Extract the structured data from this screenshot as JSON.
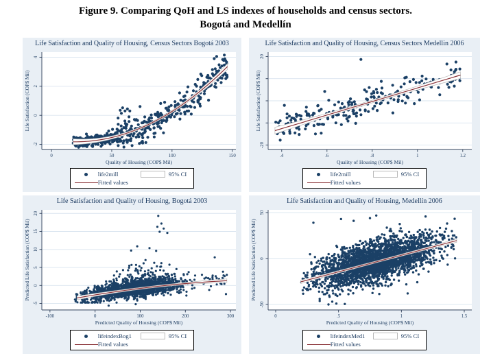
{
  "figure": {
    "title_line1": "Figure 9. Comparing QoH and LS indexes of households and census sectors.",
    "title_line2": "Bogotá and Medellín"
  },
  "colors": {
    "marker": "#1b4066",
    "fit": "#8b3439",
    "band_edge": "#b9b9b9",
    "band_fill": "#ffffff",
    "grid": "#d9e4ef",
    "axis": "#30405a",
    "text": "#1b3a5f",
    "panel_bg": "#e9eff5",
    "plot_bg": "#ffffff"
  },
  "chart_data": [
    {
      "type": "scatter",
      "title": "Life Satisfaction and Quality of Housing, Census Sectors Bogotá 2003",
      "xlabel": "Quality of Housing (COP$ Mil)",
      "ylabel": "Life Satisfaction (COP$ Mil)",
      "xlim": [
        -8,
        153
      ],
      "ylim": [
        -2.35,
        4.35
      ],
      "xtick_values": [
        0,
        50,
        100,
        150
      ],
      "xtick_labels": [
        "0",
        "50",
        "100",
        "150"
      ],
      "ytick_values": [
        -2,
        0,
        2,
        4
      ],
      "ytick_labels": [
        "-2",
        "0",
        "2",
        "4"
      ],
      "legend": {
        "marker_label": "life2mill",
        "ci_label": "95% CI",
        "fit_label": "Fitted values"
      },
      "scatter": {
        "n": 600,
        "seed": 11,
        "parts": [
          {
            "p": 0.45,
            "dist": "uniform",
            "min": 18,
            "max": 55
          },
          {
            "p": 0.38,
            "dist": "uniform",
            "min": 55,
            "max": 112
          },
          {
            "p": 0.17,
            "dist": "uniform",
            "min": 112,
            "max": 146
          }
        ],
        "trend": {
          "type": "shiftquad",
          "c0": -1.82,
          "x0": 20,
          "k": 0.000326
        },
        "noise": [
          {
            "xmax": 55,
            "sd": 0.16
          },
          {
            "xmax": 112,
            "sd": 0.5
          },
          {
            "xmax": 999,
            "sd": 0.5
          }
        ],
        "yclip": [
          -2.2,
          4.2
        ],
        "extra": [
          [
            57,
            0.35
          ],
          [
            59,
            0.52
          ],
          [
            61,
            0.3
          ],
          [
            63,
            0.44
          ],
          [
            58,
            0.14
          ],
          [
            65,
            0.3
          ],
          [
            137,
            4.05
          ],
          [
            135,
            3.9
          ],
          [
            20,
            -1.75
          ],
          [
            23,
            -2.0
          ]
        ],
        "radius": 2.1
      },
      "fit": {
        "x0": 18,
        "x1": 146,
        "ci_mid": 0.07,
        "ci_end": 0.2
      }
    },
    {
      "type": "scatter",
      "title": "Life Satisfaction and Quality of Housing, Census Sectors Medellin 2006",
      "xlabel": "Quality of Housing (COP$ Mil)",
      "ylabel": "Life Satisfaction (COP$ Mil)",
      "xlim": [
        0.34,
        1.24
      ],
      "ylim": [
        -22,
        22
      ],
      "xtick_values": [
        0.4,
        0.6,
        0.8,
        1,
        1.2
      ],
      "xtick_labels": [
        ".4",
        ".6",
        ".8",
        "1",
        "1.2"
      ],
      "ytick_values": [
        -20,
        -10,
        0,
        10,
        20
      ],
      "ytick_labels": [
        "-20",
        "",
        "",
        "",
        "20"
      ],
      "legend": {
        "marker_label": "life2mill",
        "ci_label": "95% CI",
        "fit_label": "Fitted values"
      },
      "scatter": {
        "n": 235,
        "seed": 23,
        "parts": [
          {
            "p": 0.5,
            "dist": "uniform",
            "min": 0.37,
            "max": 0.72
          },
          {
            "p": 0.5,
            "dist": "uniform",
            "min": 0.72,
            "max": 1.19
          }
        ],
        "trend": {
          "type": "linear",
          "a": -24.8,
          "b": 30.6
        },
        "noise": 3.1,
        "yclip": [
          -19.5,
          19
        ],
        "extra": [
          [
            0.75,
            18.7
          ],
          [
            0.59,
            4.2
          ],
          [
            0.38,
            -12.5
          ],
          [
            1.17,
            17.5
          ],
          [
            1.13,
            16.6
          ]
        ],
        "radius": 2.1
      },
      "fit": {
        "x0": 0.37,
        "x1": 1.19,
        "ci_mid": 0.6,
        "ci_end": 1.5
      }
    },
    {
      "type": "scatter",
      "title": "Life Satisfaction and Quality of Housing, Bogotá 2003",
      "xlabel": "Predicted Quality of Housing (COP$ Mil)",
      "ylabel": "Predicted Life Satisfaction (COP$ Mil)",
      "xlim": [
        -118,
        312
      ],
      "ylim": [
        -6.8,
        21
      ],
      "xtick_values": [
        -100,
        0,
        100,
        200,
        300
      ],
      "xtick_labels": [
        "-100",
        "0",
        "100",
        "200",
        "300"
      ],
      "ytick_values": [
        -5,
        0,
        5,
        10,
        15,
        20
      ],
      "ytick_labels": [
        "-5",
        "0",
        "5",
        "10",
        "15",
        "20"
      ],
      "legend": {
        "marker_label": "lifeindexBog1",
        "ci_label": "95% CI",
        "fit_label": "Fitted values"
      },
      "scatter": {
        "n": 1900,
        "seed": 37,
        "parts": [
          {
            "p": 0.98,
            "dist": "normal",
            "mu": 85,
            "sd": 55,
            "min": -45,
            "max": 228
          },
          {
            "p": 0.02,
            "dist": "uniform",
            "min": 235,
            "max": 292
          }
        ],
        "trend": {
          "type": "poly2",
          "c0": -2.62,
          "c1": 0.0205,
          "c2": -2.4e-05
        },
        "noise": 1.15,
        "skew": {
          "p": 0.16,
          "scale": 4.5,
          "center": 125,
          "width": 85
        },
        "yclip": [
          -4.75,
          19.5
        ],
        "extra": [
          [
            140,
            19.3
          ],
          [
            147,
            17.2
          ],
          [
            152,
            15.8
          ],
          [
            138,
            16.3
          ],
          [
            160,
            14.6
          ],
          [
            143,
            14.9
          ],
          [
            265,
            7.8
          ],
          [
            290,
            -2.4
          ],
          [
            30,
            -5.6
          ],
          [
            90,
            -5.2
          ]
        ],
        "radius": 1.6
      },
      "fit": {
        "x0": -40,
        "x1": 292,
        "ci_mid": 0.25,
        "ci_end": 0.5
      }
    },
    {
      "type": "scatter",
      "title": "Life Satisfaction and Quality of Housing, Medellín 2006",
      "xlabel": "Predicted Quality of Housing (COP$ Mil)",
      "ylabel": "Predicted Life Satisfaction (COP$ Mil)",
      "xlim": [
        -0.06,
        1.56
      ],
      "ylim": [
        -56,
        53
      ],
      "xtick_values": [
        0,
        0.5,
        1,
        1.5
      ],
      "xtick_labels": [
        "0",
        ".5",
        "1",
        "1.5"
      ],
      "ytick_values": [
        -50,
        0,
        50
      ],
      "ytick_labels": [
        "-50",
        "0",
        "50"
      ],
      "legend": {
        "marker_label": "lifeindexMed1",
        "ci_label": "95% CI",
        "fit_label": "Fitted values"
      },
      "scatter": {
        "n": 2600,
        "seed": 53,
        "parts": [
          {
            "p": 1,
            "dist": "normal",
            "mu": 0.8,
            "sd": 0.24,
            "min": 0.2,
            "max": 1.44
          }
        ],
        "trend": {
          "type": "linear",
          "a": -32.6,
          "b": 36.2
        },
        "noise": 10.5,
        "skew": {
          "p": 0.1,
          "scale": 9,
          "center": 0.55,
          "width": 0.5
        },
        "yclip": [
          -50,
          47
        ],
        "extra": [
          [
            0.8,
            46.8
          ],
          [
            0.52,
            43
          ],
          [
            0.62,
            41
          ],
          [
            0.75,
            44
          ],
          [
            0.45,
            -47
          ],
          [
            0.55,
            -49.5
          ],
          [
            0.35,
            -44
          ],
          [
            0.3,
            39
          ],
          [
            1.05,
            -38
          ],
          [
            0.42,
            -50
          ]
        ],
        "radius": 1.7
      },
      "fit": {
        "x0": 0.2,
        "x1": 1.44,
        "ci_mid": 1.0,
        "ci_end": 1.8
      }
    }
  ]
}
